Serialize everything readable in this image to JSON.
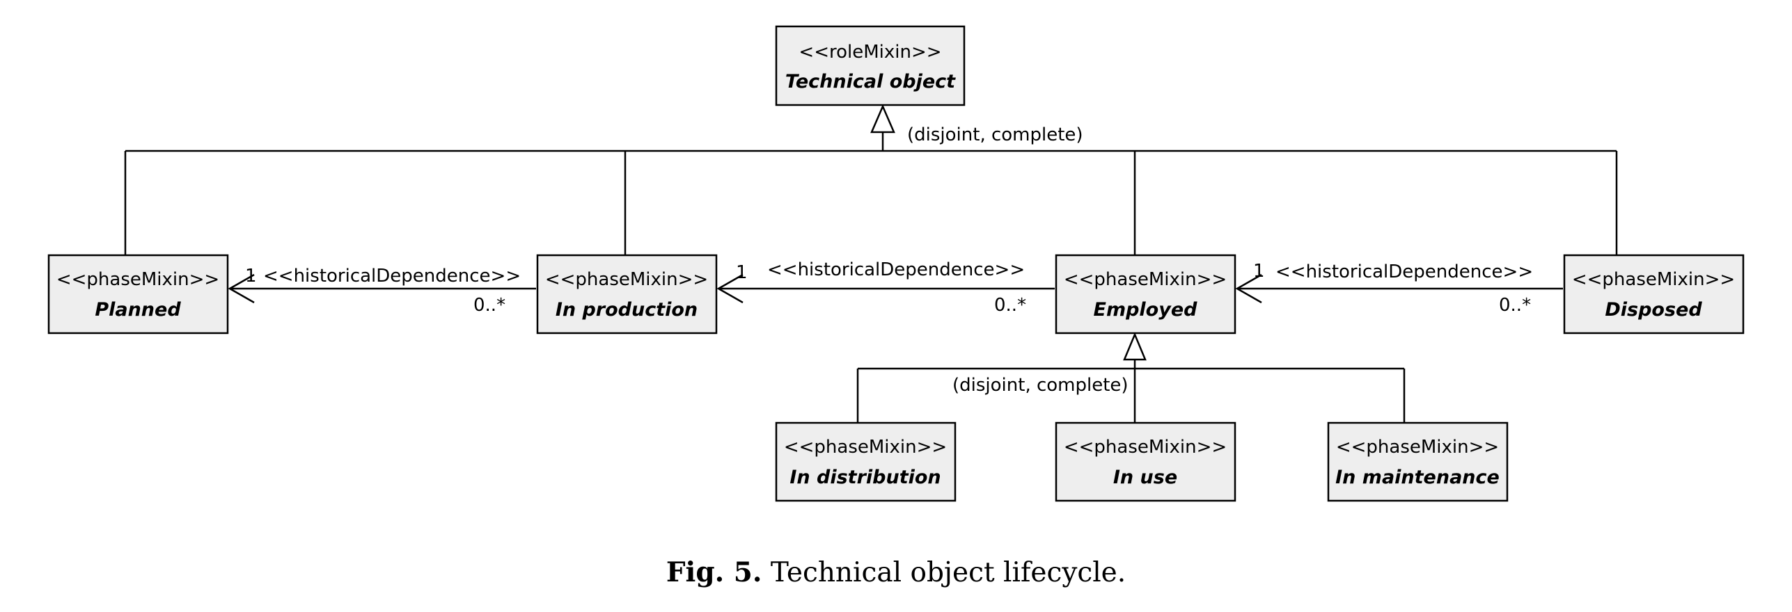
{
  "classes": {
    "technical_object": {
      "stereotype": "<<roleMixin>>",
      "name": "Technical object"
    },
    "planned": {
      "stereotype": "<<phaseMixin>>",
      "name": "Planned"
    },
    "in_production": {
      "stereotype": "<<phaseMixin>>",
      "name": "In production"
    },
    "employed": {
      "stereotype": "<<phaseMixin>>",
      "name": "Employed"
    },
    "disposed": {
      "stereotype": "<<phaseMixin>>",
      "name": "Disposed"
    },
    "in_distribution": {
      "stereotype": "<<phaseMixin>>",
      "name": "In distribution"
    },
    "in_use": {
      "stereotype": "<<phaseMixin>>",
      "name": "In use"
    },
    "in_maintenance": {
      "stereotype": "<<phaseMixin>>",
      "name": "In maintenance"
    }
  },
  "generalizations": {
    "top_constraint": "(disjoint, complete)",
    "employed_constraint": "(disjoint, complete)"
  },
  "dependencies": {
    "production_to_planned": {
      "label": "<<historicalDependence>>",
      "target_mult": "1",
      "source_mult": "0..*"
    },
    "employed_to_production": {
      "label": "<<historicalDependence>>",
      "target_mult": "1",
      "source_mult": "0..*"
    },
    "disposed_to_employed": {
      "label": "<<historicalDependence>>",
      "target_mult": "1",
      "source_mult": "0..*"
    }
  },
  "caption": {
    "label": "Fig. 5.",
    "text": "Technical object lifecycle."
  }
}
